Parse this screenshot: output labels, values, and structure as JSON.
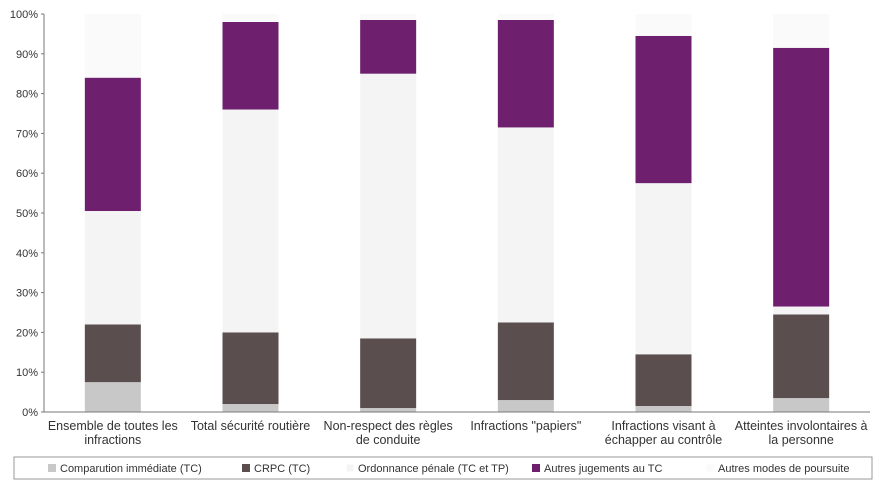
{
  "chart_data": {
    "type": "bar",
    "stacked": true,
    "categories": [
      [
        "Ensemble de toutes les",
        "infractions"
      ],
      [
        "Total sécurité routière"
      ],
      [
        "Non-respect des règles",
        "de conduite"
      ],
      [
        "Infractions \"papiers\""
      ],
      [
        "Infractions visant à",
        "échapper au contrôle"
      ],
      [
        "Atteintes involontaires à",
        "la personne"
      ]
    ],
    "yticks": [
      "0%",
      "10%",
      "20%",
      "30%",
      "40%",
      "50%",
      "60%",
      "70%",
      "80%",
      "90%",
      "100%"
    ],
    "ylim": [
      0,
      100
    ],
    "series": [
      {
        "name": "Comparution immédiate (TC)",
        "color": "#c8c8c8",
        "values": [
          7.5,
          2,
          1,
          3,
          1.5,
          3.5
        ]
      },
      {
        "name": "CRPC (TC)",
        "color": "#5a4e4e",
        "values": [
          14.5,
          18,
          17.5,
          19.5,
          13,
          21
        ]
      },
      {
        "name": "Ordonnance pénale (TC et TP)",
        "color": "#f4f4f4",
        "values": [
          28.5,
          56,
          66.5,
          49,
          43,
          2
        ]
      },
      {
        "name": "Autres jugements au TC",
        "color": "#6e1f6e",
        "values": [
          33.5,
          22,
          13.5,
          27,
          37,
          65
        ]
      },
      {
        "name": "Autres modes de poursuite",
        "color": "#fafafa",
        "values": [
          16,
          2,
          1.5,
          1.5,
          5.5,
          8.5
        ]
      }
    ],
    "legend_position": "bottom",
    "grid": false
  }
}
